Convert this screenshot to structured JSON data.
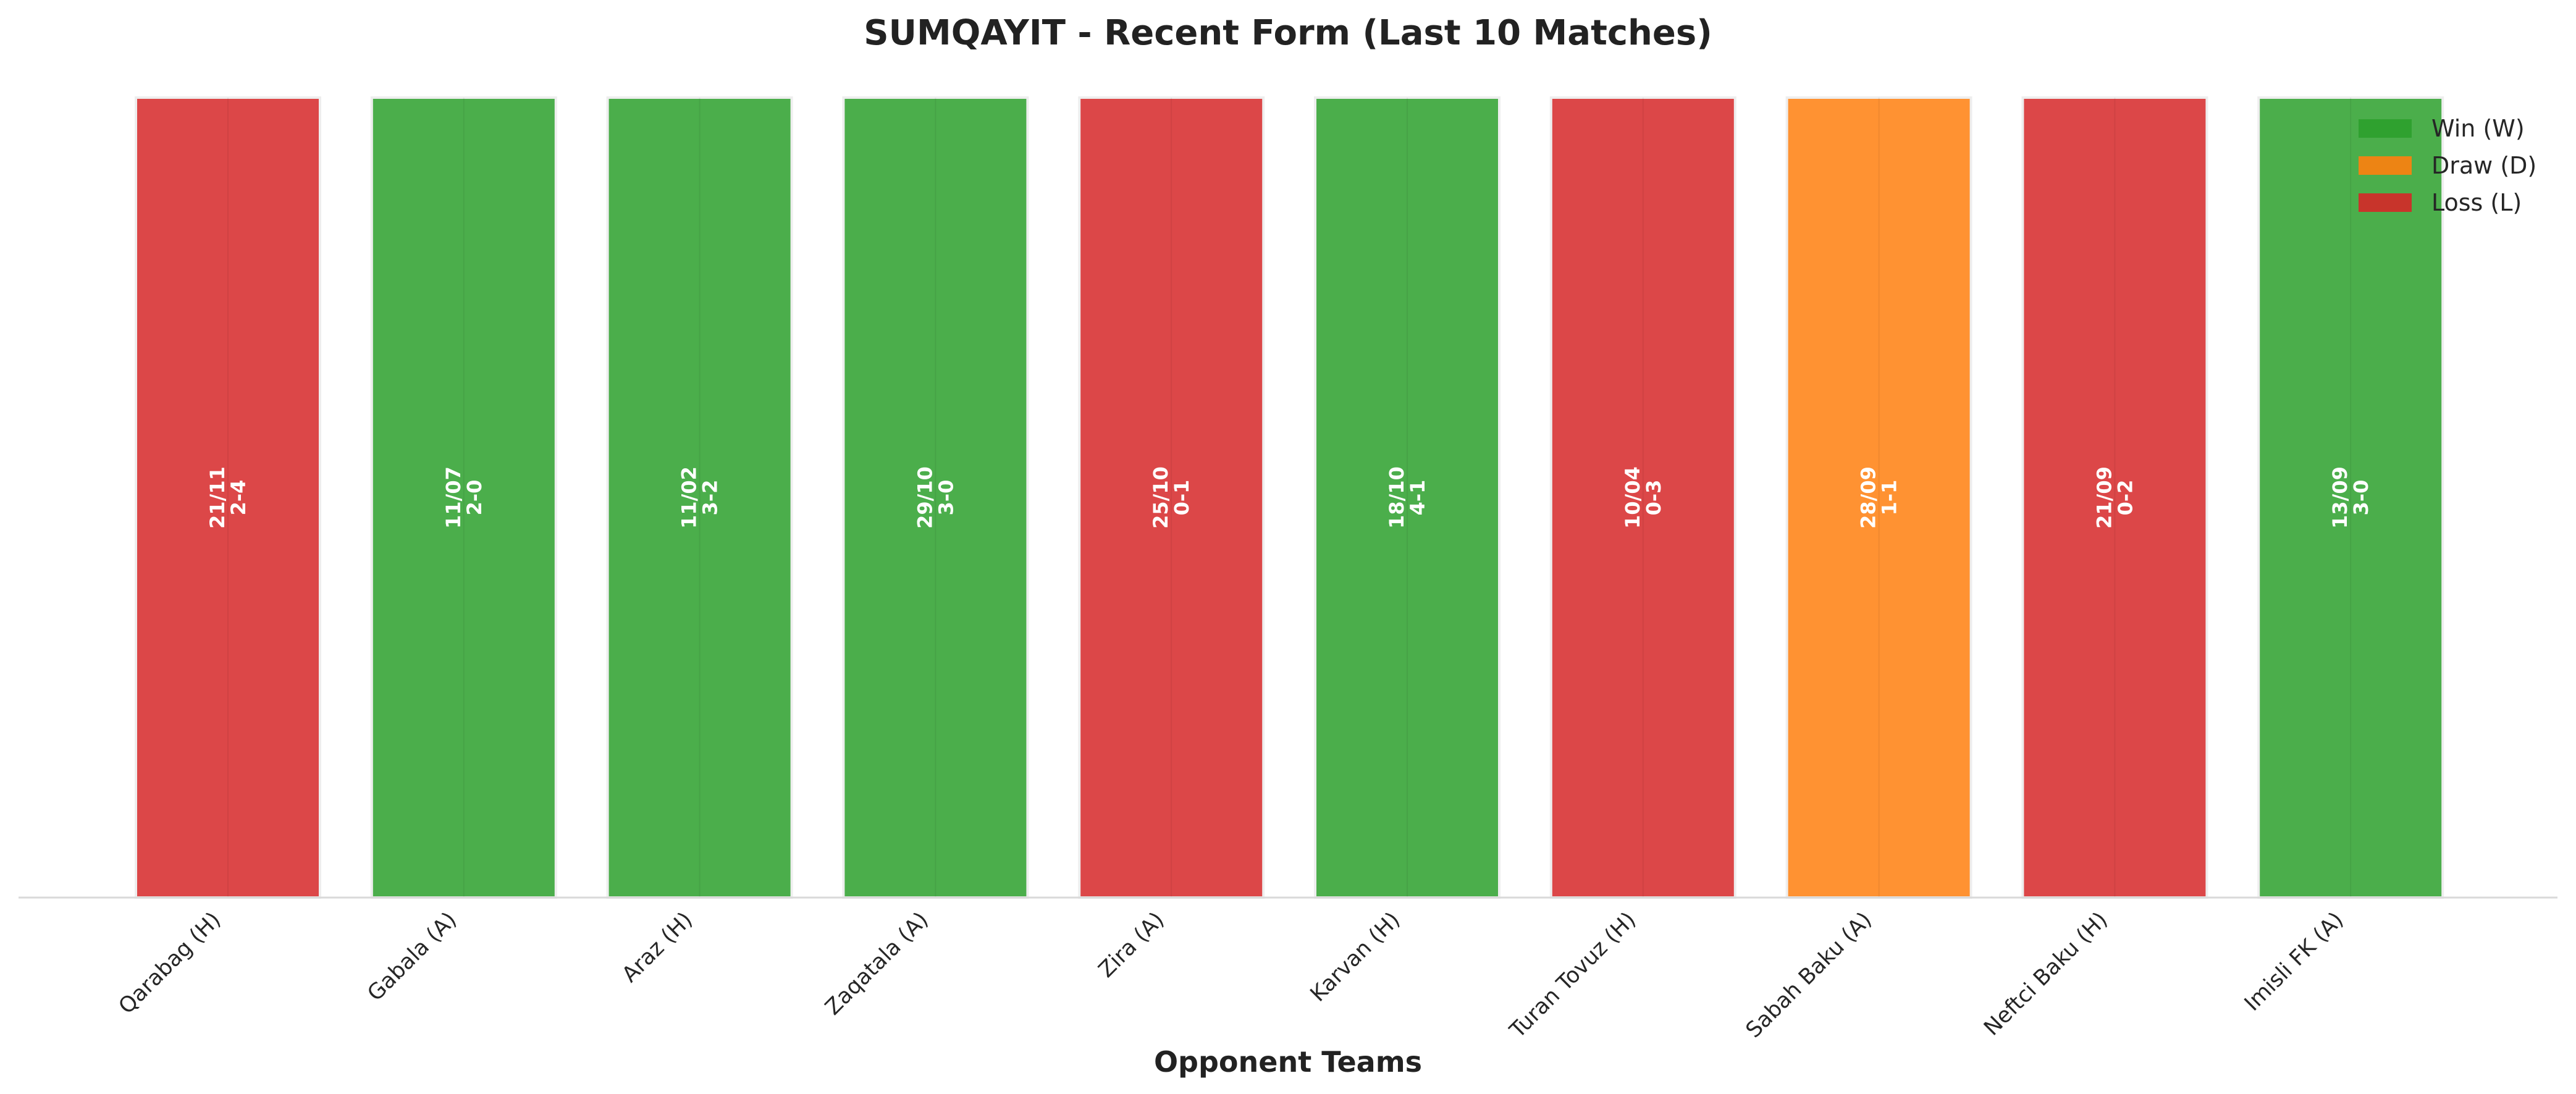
{
  "chart_data": {
    "type": "bar",
    "title": "SUMQAYIT - Recent Form (Last 10 Matches)",
    "xlabel": "Opponent Teams",
    "ylabel": "",
    "ylim": [
      0,
      1
    ],
    "grid": false,
    "legend_position": "top-right",
    "categories": [
      "Qarabag (H)",
      "Gabala (A)",
      "Araz (H)",
      "Zaqatala (A)",
      "Zira (A)",
      "Karvan (H)",
      "Turan Tovuz (H)",
      "Sabah Baku (A)",
      "Neftci Baku (H)",
      "Imisli FK (A)"
    ],
    "values": [
      1,
      1,
      1,
      1,
      1,
      1,
      1,
      1,
      1,
      1
    ],
    "results": [
      "L",
      "W",
      "W",
      "W",
      "L",
      "W",
      "L",
      "D",
      "L",
      "W"
    ],
    "dates": [
      "21/11",
      "11/07",
      "11/02",
      "29/10",
      "25/10",
      "18/10",
      "10/04",
      "28/09",
      "21/09",
      "13/09"
    ],
    "scores": [
      "2-4",
      "2-0",
      "3-2",
      "3-0",
      "0-1",
      "4-1",
      "0-3",
      "1-1",
      "0-2",
      "3-0"
    ],
    "legend": [
      {
        "key": "W",
        "label": "Win (W)",
        "color": "#2ca02c"
      },
      {
        "key": "D",
        "label": "Draw (D)",
        "color": "#ff7f0e"
      },
      {
        "key": "L",
        "label": "Loss (L)",
        "color": "#d62728"
      }
    ],
    "colors": {
      "W": "#2ca02c",
      "D": "#ff7f0e",
      "L": "#d62728"
    }
  }
}
